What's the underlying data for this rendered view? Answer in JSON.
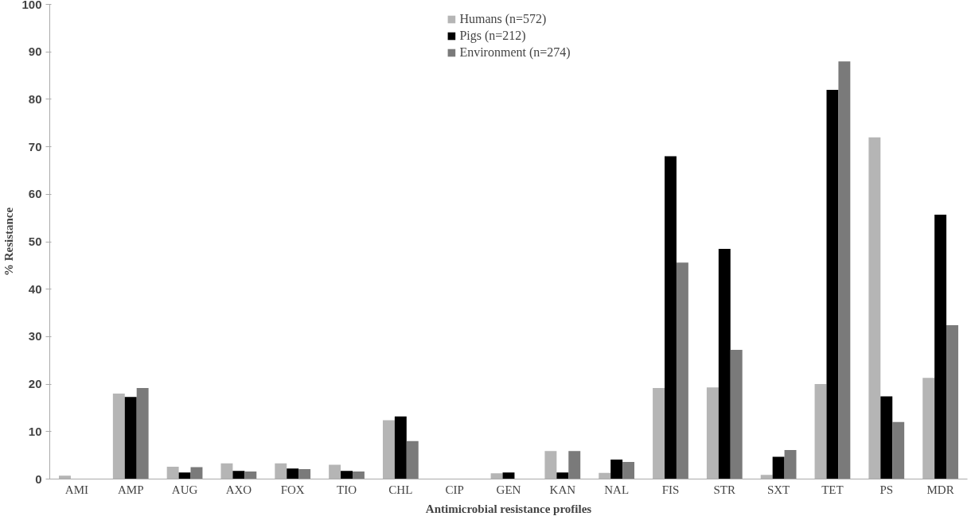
{
  "chart_data": {
    "type": "bar",
    "xlabel": "Antimicrobial resistance profiles",
    "ylabel": "% Resistance",
    "categories": [
      "AMI",
      "AMP",
      "AUG",
      "AXO",
      "FOX",
      "TIO",
      "CHL",
      "CIP",
      "GEN",
      "KAN",
      "NAL",
      "FIS",
      "STR",
      "SXT",
      "TET",
      "PS",
      "MDR"
    ],
    "series": [
      {
        "name": "Humans (n=572)",
        "color": "#b5b5b5",
        "values": [
          0.7,
          18,
          2.6,
          3.3,
          3.3,
          3,
          12.4,
          0,
          1.2,
          5.9,
          1.3,
          19.2,
          19.3,
          0.9,
          20,
          72,
          21.3
        ]
      },
      {
        "name": "Pigs (n=212)",
        "color": "#000000",
        "values": [
          0,
          17.3,
          1.4,
          1.7,
          2.2,
          1.7,
          13.2,
          0,
          1.4,
          1.4,
          4.1,
          68,
          48.5,
          4.7,
          82,
          17.4,
          55.7
        ]
      },
      {
        "name": "Environment (n=274)",
        "color": "#7a7a7a",
        "values": [
          0,
          19.2,
          2.5,
          1.6,
          2.1,
          1.6,
          8,
          0,
          0,
          5.9,
          3.6,
          45.6,
          27.2,
          6.1,
          88,
          12,
          32.4
        ]
      }
    ],
    "ylim": [
      0,
      100
    ],
    "yticks": [
      0,
      10,
      20,
      30,
      40,
      50,
      60,
      70,
      80,
      90,
      100
    ],
    "grid": false,
    "legend": "top"
  }
}
